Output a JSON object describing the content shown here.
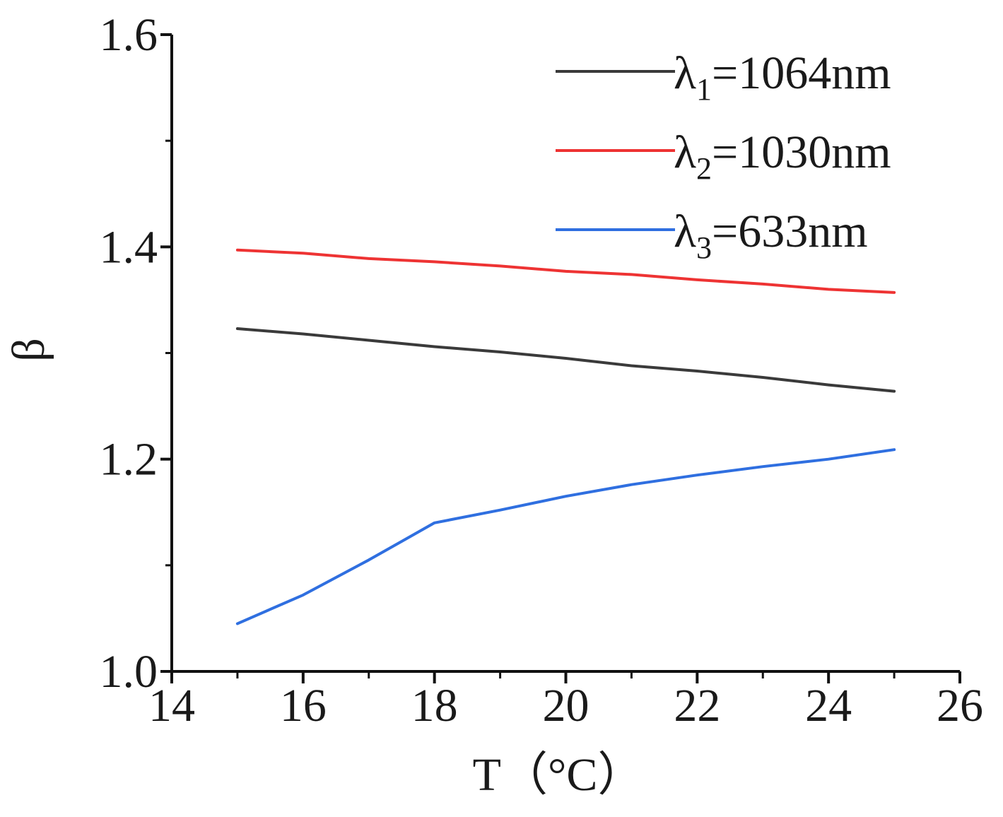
{
  "chart_data": {
    "type": "line",
    "title": "",
    "xlabel": "T（°C）",
    "ylabel": "β",
    "xlim": [
      14,
      26
    ],
    "ylim": [
      1.0,
      1.6
    ],
    "x_major_ticks": [
      14,
      16,
      18,
      20,
      22,
      24,
      26
    ],
    "x_tick_labels": [
      "14",
      "16",
      "18",
      "20",
      "22",
      "24",
      "26"
    ],
    "y_major_ticks": [
      1.0,
      1.2,
      1.4,
      1.6
    ],
    "y_tick_labels": [
      "1.0",
      "1.2",
      "1.4",
      "1.6"
    ],
    "grid": false,
    "legend_position": "top-right",
    "series": [
      {
        "name": "λ1=1064nm",
        "symbol": "λ",
        "subscript": "1",
        "label_rest": "=1064nm",
        "color": "#3a3a3a",
        "x": [
          15,
          16,
          17,
          18,
          19,
          20,
          21,
          22,
          23,
          24,
          25
        ],
        "y": [
          1.323,
          1.318,
          1.312,
          1.306,
          1.301,
          1.295,
          1.288,
          1.283,
          1.277,
          1.27,
          1.264
        ]
      },
      {
        "name": "λ2=1030nm",
        "symbol": "λ",
        "subscript": "2",
        "label_rest": "=1030nm",
        "color": "#ee3333",
        "x": [
          15,
          16,
          17,
          18,
          19,
          20,
          21,
          22,
          23,
          24,
          25
        ],
        "y": [
          1.397,
          1.394,
          1.389,
          1.386,
          1.382,
          1.377,
          1.374,
          1.369,
          1.365,
          1.36,
          1.357
        ]
      },
      {
        "name": "λ3=633nm",
        "symbol": "λ",
        "subscript": "3",
        "label_rest": "=633nm",
        "color": "#2f6fe0",
        "x": [
          15,
          16,
          17,
          18,
          19,
          20,
          21,
          22,
          23,
          24,
          25
        ],
        "y": [
          1.045,
          1.072,
          1.105,
          1.14,
          1.152,
          1.165,
          1.176,
          1.185,
          1.193,
          1.2,
          1.209
        ]
      }
    ]
  }
}
